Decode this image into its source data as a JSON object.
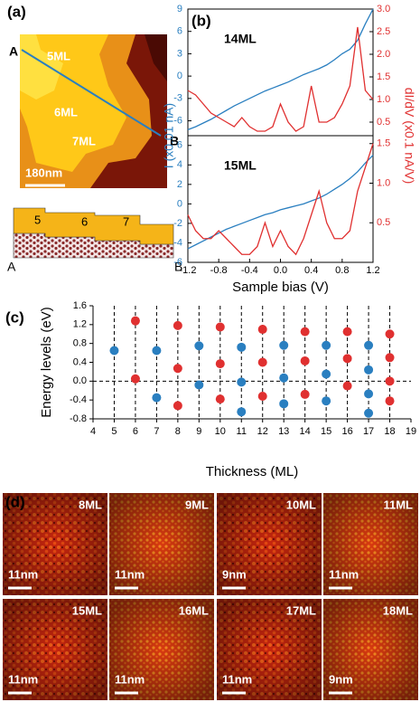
{
  "panel_a": {
    "label": "(a)",
    "terraces": [
      "5ML",
      "6ML",
      "7ML"
    ],
    "scale": "180nm",
    "ends": [
      "A",
      "B"
    ],
    "steps": [
      "5",
      "6",
      "7"
    ],
    "step_ends": [
      "A",
      "B"
    ]
  },
  "chart_data": [
    {
      "type": "line",
      "label": "(b)",
      "title": "14ML",
      "ylabel": "I (x0.01 nA)",
      "y2label": "dI/dV (x0.1 nA/V)",
      "x": [
        -1.2,
        -1.1,
        -1.0,
        -0.9,
        -0.8,
        -0.7,
        -0.6,
        -0.5,
        -0.4,
        -0.3,
        -0.2,
        -0.1,
        0.0,
        0.1,
        0.2,
        0.3,
        0.4,
        0.5,
        0.6,
        0.7,
        0.8,
        0.9,
        1.0,
        1.1,
        1.2
      ],
      "xlim": [
        -1.2,
        1.2
      ],
      "ylim": [
        -8,
        9
      ],
      "yticks": [
        -6,
        -3,
        0,
        3,
        6,
        9
      ],
      "y2lim": [
        0.2,
        3.0
      ],
      "y2ticks": [
        0.5,
        {
          "value": 1.0,
          "label": "1.0"
        },
        1.5,
        {
          "value": 2.0,
          "label": "2.0"
        },
        2.5,
        {
          "value": 3.0,
          "label": "3.0"
        }
      ],
      "series": [
        {
          "color": "#2a7fc0",
          "values": [
            -7.2,
            -6.8,
            -6.3,
            -5.8,
            -5.2,
            -4.6,
            -4.0,
            -3.5,
            -3.0,
            -2.5,
            -2.0,
            -1.6,
            -1.2,
            -0.8,
            -0.3,
            0.2,
            0.6,
            1.0,
            1.5,
            2.2,
            3.0,
            3.6,
            4.8,
            7.0,
            9.0
          ]
        },
        {
          "color": "#e03030",
          "axis": "y2",
          "values": [
            1.2,
            1.1,
            0.9,
            0.7,
            0.6,
            0.5,
            0.4,
            0.6,
            0.4,
            0.3,
            0.3,
            0.4,
            0.9,
            0.5,
            0.3,
            0.4,
            1.3,
            0.5,
            0.5,
            0.6,
            0.9,
            1.3,
            2.6,
            1.2,
            1.0
          ]
        }
      ]
    },
    {
      "type": "line",
      "title": "15ML",
      "xlabel": "Sample bias (V)",
      "x": [
        -1.2,
        -1.1,
        -1.0,
        -0.9,
        -0.8,
        -0.7,
        -0.6,
        -0.5,
        -0.4,
        -0.3,
        -0.2,
        -0.1,
        0.0,
        0.1,
        0.2,
        0.3,
        0.4,
        0.5,
        0.6,
        0.7,
        0.8,
        0.9,
        1.0,
        1.1,
        1.2
      ],
      "xlim": [
        -1.2,
        1.2
      ],
      "xticks": [
        -1.2,
        -0.8,
        -0.4,
        {
          "value": 0,
          "label": "0.0"
        },
        0.4,
        0.8,
        1.2
      ],
      "ylim": [
        -6,
        7
      ],
      "yticks": [
        -6,
        -4,
        -2,
        0,
        2,
        4,
        6
      ],
      "y2lim": [
        0,
        1.6
      ],
      "y2ticks": [
        0.5,
        {
          "value": 1.0,
          "label": "1.0"
        },
        1.5
      ],
      "series": [
        {
          "color": "#2a7fc0",
          "values": [
            -4.6,
            -4.2,
            -3.8,
            -3.4,
            -3.0,
            -2.6,
            -2.3,
            -2.0,
            -1.7,
            -1.4,
            -1.1,
            -0.9,
            -0.6,
            -0.4,
            -0.2,
            0.0,
            0.3,
            0.6,
            1.0,
            1.5,
            2.0,
            2.6,
            3.3,
            4.2,
            5.0
          ]
        },
        {
          "color": "#e03030",
          "axis": "y2",
          "values": [
            0.6,
            0.4,
            0.3,
            0.3,
            0.4,
            0.3,
            0.2,
            0.1,
            0.1,
            0.2,
            0.5,
            0.2,
            0.4,
            0.2,
            0.1,
            0.3,
            0.6,
            0.9,
            0.5,
            0.3,
            0.3,
            0.4,
            0.9,
            1.2,
            1.5
          ]
        }
      ]
    },
    {
      "type": "scatter",
      "label": "(c)",
      "ylabel": "Energy levels (eV)",
      "xlabel": "Thickness (ML)",
      "xlim": [
        4,
        19
      ],
      "xticks": [
        4,
        5,
        6,
        7,
        8,
        9,
        10,
        11,
        12,
        13,
        14,
        15,
        16,
        17,
        18,
        19
      ],
      "ylim": [
        -0.8,
        1.6
      ],
      "yticks": [
        -0.8,
        -0.4,
        {
          "value": 0,
          "label": "0.0"
        },
        0.4,
        0.8,
        1.2,
        1.6
      ],
      "series": [
        {
          "color": "#2a7fc0",
          "x": [
            5,
            7,
            7,
            9,
            9,
            11,
            11,
            11,
            13,
            13,
            13,
            15,
            15,
            15,
            17,
            17,
            17,
            17
          ],
          "values": [
            0.65,
            0.65,
            -0.35,
            0.75,
            -0.08,
            0.72,
            -0.02,
            -0.65,
            0.76,
            0.07,
            -0.48,
            0.76,
            0.15,
            -0.42,
            0.76,
            0.24,
            -0.27,
            -0.68
          ]
        },
        {
          "color": "#e03030",
          "x": [
            6,
            6,
            8,
            8,
            8,
            10,
            10,
            10,
            12,
            12,
            12,
            14,
            14,
            14,
            16,
            16,
            16,
            18,
            18,
            18,
            18
          ],
          "values": [
            1.28,
            0.05,
            1.18,
            0.27,
            -0.52,
            1.15,
            0.37,
            -0.38,
            1.1,
            0.4,
            -0.32,
            1.05,
            0.43,
            -0.28,
            1.05,
            0.48,
            -0.1,
            1.0,
            0.5,
            0.0,
            -0.42
          ]
        }
      ]
    }
  ],
  "panel_d": {
    "label": "(d)",
    "images": [
      {
        "label": "8ML",
        "scale": "11nm"
      },
      {
        "label": "9ML",
        "scale": "11nm"
      },
      {
        "label": "10ML",
        "scale": "9nm"
      },
      {
        "label": "11ML",
        "scale": "11nm"
      },
      {
        "label": "15ML",
        "scale": "11nm"
      },
      {
        "label": "16ML",
        "scale": "11nm"
      },
      {
        "label": "17ML",
        "scale": "11nm"
      },
      {
        "label": "18ML",
        "scale": "9nm"
      }
    ]
  }
}
